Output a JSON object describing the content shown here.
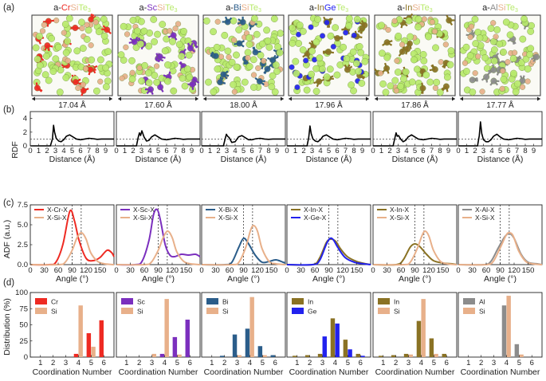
{
  "colors": {
    "Cr": "#ee2a22",
    "Sc": "#7b2fbe",
    "Bi": "#2b5d8a",
    "In": "#8a7224",
    "Ge": "#2222ee",
    "Al": "#8c8c8c",
    "Si": "#e8b08a",
    "Te": "#b8ea6c",
    "black": "#000000"
  },
  "panels": {
    "a": "(a)",
    "b": "(b)",
    "c": "(c)",
    "d": "(d)"
  },
  "materials": [
    {
      "prefix": "a-",
      "X": "Cr",
      "mid": "Si",
      "tail": "Te",
      "sub": "3",
      "length": "17.04 Å",
      "xcolor": "#ee2a22",
      "midcolor": "#e8b08a",
      "tecolor": "#b8ea6c"
    },
    {
      "prefix": "a-",
      "X": "Sc",
      "mid": "Si",
      "tail": "Te",
      "sub": "3",
      "length": "17.60 Å",
      "xcolor": "#7b2fbe",
      "midcolor": "#e8b08a",
      "tecolor": "#b8ea6c"
    },
    {
      "prefix": "a-",
      "X": "Bi",
      "mid": "Si",
      "tail": "Te",
      "sub": "3",
      "length": "18.00 Å",
      "xcolor": "#2b5d8a",
      "midcolor": "#e8b08a",
      "tecolor": "#b8ea6c"
    },
    {
      "prefix": "a-",
      "X": "In",
      "mid": "Ge",
      "tail": "Te",
      "sub": "3",
      "length": "17.96 Å",
      "xcolor": "#8a7224",
      "midcolor": "#2222ee",
      "tecolor": "#b8ea6c"
    },
    {
      "prefix": "a-",
      "X": "In",
      "mid": "Si",
      "tail": "Te",
      "sub": "3",
      "length": "17.86 Å",
      "xcolor": "#8a7224",
      "midcolor": "#e8b08a",
      "tecolor": "#b8ea6c"
    },
    {
      "prefix": "a-",
      "X": "Al",
      "mid": "Si",
      "tail": "Te",
      "sub": "3",
      "length": "17.77 Å",
      "xcolor": "#8c8c8c",
      "midcolor": "#e8b08a",
      "tecolor": "#b8ea6c"
    }
  ],
  "chart_data": [
    {
      "type": "line",
      "panel": "b",
      "ylabel": "RDF",
      "xlabel": "Distance (Å)",
      "xlim": [
        0,
        10
      ],
      "ylim": [
        0,
        5
      ],
      "xticks": [
        "0",
        "1",
        "2",
        "3",
        "4",
        "5",
        "6",
        "7",
        "8",
        "9"
      ],
      "yticks": [
        "0",
        "2",
        "4"
      ],
      "reference_line_y": 1,
      "series": [
        {
          "x": [
            0,
            2.4,
            2.65,
            2.78,
            2.9,
            3.1,
            3.4,
            3.7,
            4.0,
            4.3,
            4.7,
            5.1,
            5.5,
            6.0,
            6.5,
            7.0,
            7.5,
            8.0,
            8.5,
            9.0,
            9.5,
            10
          ],
          "values": [
            0,
            0,
            1.0,
            3.0,
            2.0,
            1.1,
            0.7,
            0.6,
            0.9,
            1.4,
            1.6,
            1.3,
            1.0,
            0.9,
            1.0,
            1.1,
            1.05,
            0.95,
            1.0,
            1.0,
            1.0,
            1.0
          ]
        },
        {
          "x": [
            0,
            2.4,
            2.6,
            2.75,
            2.9,
            3.05,
            3.3,
            3.6,
            3.9,
            4.2,
            4.6,
            5.0,
            5.4,
            6.0,
            6.5,
            7.0,
            7.5,
            8.0,
            8.5,
            9.0,
            9.5,
            10
          ],
          "values": [
            0,
            0,
            1.2,
            1.9,
            1.5,
            2.2,
            1.3,
            0.7,
            0.8,
            1.3,
            1.6,
            1.3,
            1.0,
            0.9,
            1.0,
            1.1,
            1.05,
            0.95,
            1.0,
            1.0,
            1.0,
            1.0
          ]
        },
        {
          "x": [
            0,
            2.6,
            2.8,
            2.95,
            3.1,
            3.3,
            3.6,
            4.0,
            4.4,
            4.8,
            5.2,
            5.6,
            6.0,
            6.5,
            7.0,
            7.5,
            8.0,
            8.5,
            9.0,
            9.5,
            10
          ],
          "values": [
            0,
            0,
            1.0,
            1.7,
            1.4,
            1.2,
            0.5,
            0.6,
            1.3,
            1.5,
            1.2,
            0.9,
            0.9,
            1.05,
            1.1,
            1.0,
            0.95,
            1.0,
            1.0,
            1.0,
            1.0
          ]
        },
        {
          "x": [
            0,
            2.4,
            2.6,
            2.75,
            2.9,
            3.1,
            3.4,
            3.7,
            4.0,
            4.3,
            4.7,
            5.1,
            5.5,
            6.0,
            6.5,
            7.0,
            7.5,
            8.0,
            8.5,
            9.0,
            9.5,
            10
          ],
          "values": [
            0,
            0,
            1.2,
            2.9,
            1.8,
            1.0,
            0.7,
            0.6,
            0.9,
            1.4,
            1.6,
            1.3,
            1.0,
            0.9,
            1.0,
            1.1,
            1.05,
            0.95,
            1.0,
            1.0,
            1.0,
            1.0
          ]
        },
        {
          "x": [
            0,
            2.4,
            2.6,
            2.75,
            2.9,
            3.05,
            3.3,
            3.6,
            3.9,
            4.2,
            4.6,
            5.0,
            5.4,
            6.0,
            6.5,
            7.0,
            7.5,
            8.0,
            8.5,
            9.0,
            9.5,
            10
          ],
          "values": [
            0,
            0,
            1.1,
            1.9,
            1.4,
            1.5,
            1.0,
            0.6,
            0.8,
            1.3,
            1.6,
            1.3,
            1.0,
            0.9,
            1.0,
            1.1,
            1.05,
            0.95,
            1.0,
            1.0,
            1.0,
            1.0
          ]
        },
        {
          "x": [
            0,
            2.3,
            2.5,
            2.65,
            2.8,
            3.0,
            3.3,
            3.6,
            3.9,
            4.2,
            4.6,
            5.0,
            5.4,
            6.0,
            6.5,
            7.0,
            7.5,
            8.0,
            8.5,
            9.0,
            9.5,
            10
          ],
          "values": [
            0,
            0,
            1.5,
            3.5,
            1.8,
            0.9,
            0.6,
            0.6,
            0.9,
            1.4,
            1.7,
            1.3,
            1.0,
            0.9,
            1.0,
            1.1,
            1.05,
            0.95,
            1.0,
            1.0,
            1.0,
            1.0
          ]
        }
      ]
    },
    {
      "type": "line",
      "panel": "c",
      "ylabel": "ADF (a.u.)",
      "xlabel": "Angle (°)",
      "xlim": [
        0,
        180
      ],
      "ylim": [
        0,
        7.5
      ],
      "xticks": [
        "0",
        "30",
        "60",
        "90",
        "120",
        "150"
      ],
      "yticks": [
        "0.0",
        "2.5",
        "5.0",
        "7.5"
      ],
      "reference_lines_x": [
        90,
        109.5
      ],
      "subplots": [
        {
          "legend": [
            "X-Cr-X",
            "X-Si-X"
          ],
          "series": [
            {
              "name": "X-Cr-X",
              "x": [
                0,
                40,
                55,
                70,
                85,
                95,
                105,
                120,
                135,
                150,
                165,
                175,
                180
              ],
              "values": [
                0,
                0,
                0.3,
                2.5,
                6.7,
                5.5,
                3.0,
                0.8,
                0.5,
                0.9,
                1.8,
                1.5,
                1.0
              ]
            },
            {
              "name": "X-Si-X",
              "x": [
                0,
                60,
                75,
                90,
                100,
                110,
                120,
                130,
                145,
                160,
                180
              ],
              "values": [
                0,
                0,
                0.3,
                1.8,
                3.3,
                4.0,
                3.2,
                1.5,
                0.4,
                0.1,
                0
              ]
            }
          ]
        },
        {
          "legend": [
            "X-Sc-X",
            "X-Si-X"
          ],
          "series": [
            {
              "name": "X-Sc-X",
              "x": [
                0,
                40,
                55,
                70,
                80,
                88,
                95,
                105,
                115,
                125,
                140,
                155,
                170,
                180
              ],
              "values": [
                0,
                0,
                0.4,
                3.0,
                6.3,
                6.9,
                5.5,
                2.5,
                1.2,
                1.0,
                1.3,
                1.2,
                1.3,
                1.0
              ]
            },
            {
              "name": "X-Si-X",
              "x": [
                0,
                60,
                75,
                90,
                100,
                110,
                120,
                130,
                145,
                160,
                180
              ],
              "values": [
                0,
                0,
                0.3,
                1.8,
                3.3,
                4.2,
                3.4,
                1.6,
                0.4,
                0.1,
                0
              ]
            }
          ]
        },
        {
          "legend": [
            "X-Bi-X",
            "X-Si-X"
          ],
          "series": [
            {
              "name": "X-Bi-X",
              "x": [
                0,
                50,
                65,
                80,
                90,
                100,
                115,
                130,
                145,
                160,
                175,
                180
              ],
              "values": [
                0,
                0,
                0.3,
                2.2,
                3.3,
                2.7,
                1.2,
                0.3,
                0.4,
                0.6,
                0.3,
                0.2
              ]
            },
            {
              "name": "X-Si-X",
              "x": [
                0,
                65,
                80,
                95,
                105,
                112,
                120,
                130,
                145,
                160,
                180
              ],
              "values": [
                0,
                0,
                0.3,
                2.2,
                4.3,
                4.9,
                4.2,
                2.0,
                0.4,
                0.1,
                0
              ]
            }
          ]
        },
        {
          "legend": [
            "X-In-X",
            "X-Ge-X"
          ],
          "series": [
            {
              "name": "X-In-X",
              "x": [
                0,
                55,
                70,
                85,
                95,
                105,
                115,
                130,
                150,
                170,
                180
              ],
              "values": [
                0,
                0,
                0.8,
                2.8,
                3.2,
                2.9,
                2.0,
                1.0,
                0.4,
                0.1,
                0
              ]
            },
            {
              "name": "X-Ge-X",
              "x": [
                0,
                55,
                70,
                85,
                93,
                100,
                110,
                125,
                145,
                165,
                180
              ],
              "values": [
                0,
                0,
                0.5,
                2.6,
                3.3,
                3.1,
                2.1,
                0.9,
                0.3,
                0.1,
                0
              ]
            }
          ]
        },
        {
          "legend": [
            "X-In-X",
            "X-Si-X"
          ],
          "series": [
            {
              "name": "X-In-X",
              "x": [
                0,
                50,
                65,
                80,
                90,
                100,
                115,
                130,
                150,
                170,
                180
              ],
              "values": [
                0,
                0,
                0.6,
                2.2,
                2.6,
                2.3,
                1.3,
                0.5,
                0.2,
                0.1,
                0
              ]
            },
            {
              "name": "X-Si-X",
              "x": [
                0,
                65,
                80,
                95,
                105,
                112,
                120,
                130,
                145,
                160,
                180
              ],
              "values": [
                0,
                0,
                0.3,
                2.0,
                3.6,
                4.2,
                3.6,
                1.8,
                0.4,
                0.1,
                0
              ]
            }
          ]
        },
        {
          "legend": [
            "X-Al-X",
            "X-Si-X"
          ],
          "series": [
            {
              "name": "X-Al-X",
              "x": [
                0,
                55,
                70,
                85,
                100,
                110,
                120,
                135,
                150,
                170,
                180
              ],
              "values": [
                0,
                0,
                0.4,
                2.0,
                3.5,
                3.9,
                3.3,
                1.3,
                0.3,
                0.1,
                0
              ]
            },
            {
              "name": "X-Si-X",
              "x": [
                0,
                60,
                75,
                90,
                103,
                110,
                118,
                130,
                145,
                160,
                180
              ],
              "values": [
                0,
                0,
                0.4,
                2.1,
                3.7,
                4.0,
                3.6,
                1.7,
                0.4,
                0.1,
                0
              ]
            }
          ]
        }
      ]
    },
    {
      "type": "bar",
      "panel": "d",
      "ylabel": "Distribution (%)",
      "xlabel": "Coordination Number",
      "ylim": [
        0,
        100
      ],
      "categories": [
        "1",
        "2",
        "3",
        "4",
        "5",
        "6"
      ],
      "yticks": [
        "0",
        "25",
        "50",
        "75",
        "100"
      ],
      "subplots": [
        {
          "legend": [
            "Cr",
            "Si"
          ],
          "series": [
            {
              "name": "Cr",
              "values": [
                0,
                0,
                0,
                5,
                37,
                57
              ]
            },
            {
              "name": "Si",
              "values": [
                0,
                0,
                0,
                80,
                16,
                0
              ]
            }
          ]
        },
        {
          "legend": [
            "Sc",
            "Si"
          ],
          "series": [
            {
              "name": "Sc",
              "values": [
                0,
                0,
                0,
                5,
                31,
                58
              ]
            },
            {
              "name": "Si",
              "values": [
                0,
                0,
                5,
                90,
                4,
                0
              ]
            }
          ]
        },
        {
          "legend": [
            "Bi",
            "Si"
          ],
          "series": [
            {
              "name": "Bi",
              "values": [
                0,
                2,
                35,
                44,
                17,
                3
              ]
            },
            {
              "name": "Si",
              "values": [
                0,
                0,
                3,
                93,
                3,
                0
              ]
            }
          ]
        },
        {
          "legend": [
            "In",
            "Ge"
          ],
          "series": [
            {
              "name": "In",
              "values": [
                2,
                3,
                5,
                60,
                27,
                5
              ]
            },
            {
              "name": "Ge",
              "values": [
                0,
                0,
                32,
                52,
                12,
                2
              ]
            }
          ]
        },
        {
          "legend": [
            "In",
            "Si"
          ],
          "series": [
            {
              "name": "In",
              "values": [
                2,
                3,
                5,
                56,
                29,
                5
              ]
            },
            {
              "name": "Si",
              "values": [
                0,
                0,
                4,
                90,
                5,
                0
              ]
            }
          ]
        },
        {
          "legend": [
            "Al",
            "Si"
          ],
          "series": [
            {
              "name": "Al",
              "values": [
                0,
                0,
                0,
                80,
                20,
                0
              ]
            },
            {
              "name": "Si",
              "values": [
                0,
                0,
                0,
                95,
                4,
                0
              ]
            }
          ]
        }
      ]
    }
  ]
}
